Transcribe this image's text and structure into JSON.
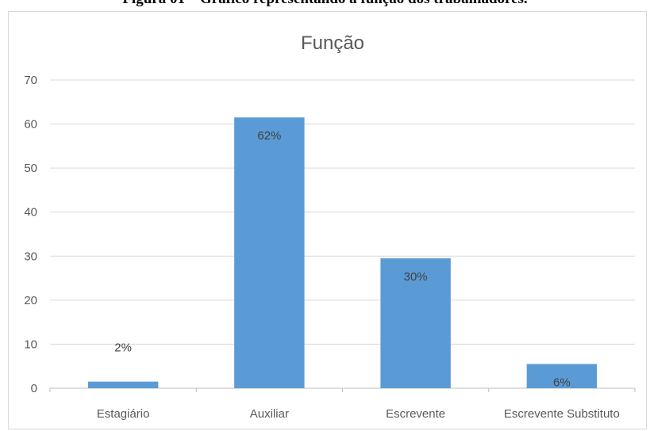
{
  "caption": "Figura 01 – Gráfico representando a função dos trabalhadores.",
  "chart_data": {
    "type": "bar",
    "title": "Função",
    "categories": [
      "Estagiário",
      "Auxiliar",
      "Escrevente",
      "Escrevente Substituto"
    ],
    "values": [
      1.5,
      61.5,
      29.5,
      5.5
    ],
    "data_labels": [
      "2%",
      "62%",
      "30%",
      "6%"
    ],
    "ylim": [
      0,
      70
    ],
    "yticks": [
      0,
      10,
      20,
      30,
      40,
      50,
      60,
      70
    ],
    "grid": true,
    "legend": "none",
    "bar_color": "#5b9bd5",
    "xlabel": "",
    "ylabel": ""
  }
}
